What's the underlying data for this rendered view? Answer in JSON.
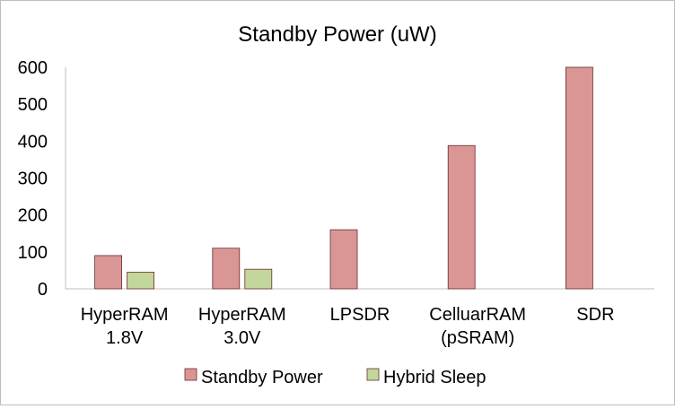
{
  "chart_data": {
    "type": "bar",
    "title": "Standby Power (uW)",
    "categories": [
      [
        "HyperRAM",
        "1.8V"
      ],
      [
        "HyperRAM",
        "3.0V"
      ],
      [
        "LPSDR"
      ],
      [
        "CelluarRAM",
        "(pSRAM)"
      ],
      [
        "SDR"
      ]
    ],
    "series": [
      {
        "name": "Standby Power",
        "color": "#d99694",
        "values": [
          90,
          110,
          160,
          388,
          600
        ]
      },
      {
        "name": "Hybrid Sleep",
        "color": "#c3d69b",
        "values": [
          45,
          53,
          null,
          null,
          null
        ]
      }
    ],
    "ylim": [
      0,
      600
    ],
    "yticks": [
      0,
      100,
      200,
      300,
      400,
      500,
      600
    ],
    "xlabel": "",
    "ylabel": "",
    "grid": false,
    "legend": "bottom"
  }
}
